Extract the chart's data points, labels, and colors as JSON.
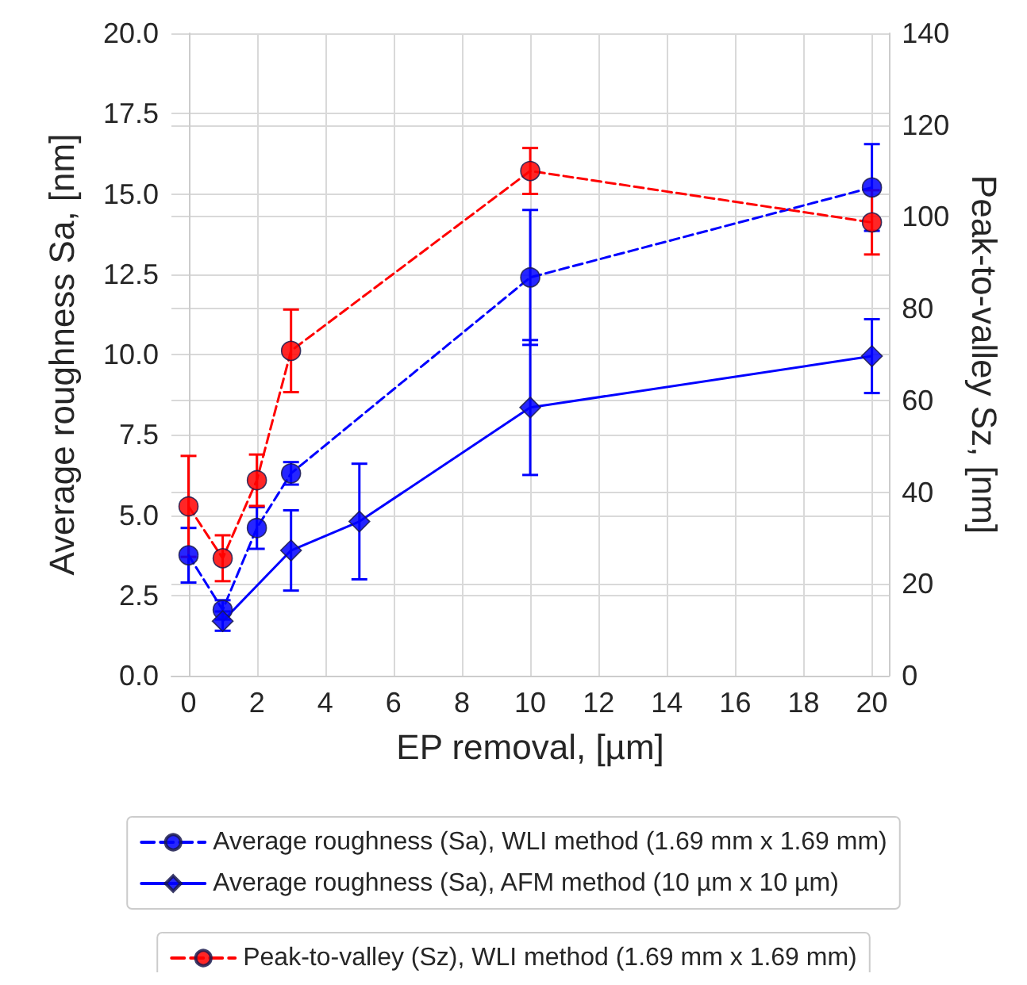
{
  "chart_data": {
    "type": "line",
    "xlabel": "EP removal, [µm]",
    "ylabel": "Average roughness Sa, [nm]",
    "y2label": "Peak-to-valley Sz, [nm]",
    "xlim": [
      -0.5,
      20.5
    ],
    "xticks": [
      0,
      2,
      4,
      6,
      8,
      10,
      12,
      14,
      16,
      18,
      20
    ],
    "ylim": [
      0,
      20
    ],
    "yticks": [
      {
        "value": 0,
        "label": "0.0"
      },
      {
        "value": 2.5,
        "label": "2.5"
      },
      {
        "value": 5,
        "label": "5.0"
      },
      {
        "value": 7.5,
        "label": "7.5"
      },
      {
        "value": 10,
        "label": "10.0"
      },
      {
        "value": 12.5,
        "label": "12.5"
      },
      {
        "value": 15,
        "label": "15.0"
      },
      {
        "value": 17.5,
        "label": "17.5"
      },
      {
        "value": 20,
        "label": "20.0"
      }
    ],
    "y2lim": [
      0,
      140
    ],
    "y2ticks": [
      0,
      20,
      40,
      60,
      80,
      100,
      120,
      140
    ],
    "grid": true,
    "legend": "bottom",
    "series": [
      {
        "name": "Average roughness (Sa), WLI method (1.69 mm x 1.69 mm)",
        "color": "#0000ff",
        "marker": "circle",
        "line_style": "dashed",
        "x": [
          0,
          1,
          2,
          3,
          10,
          20
        ],
        "values": [
          3.75,
          2.05,
          4.6,
          6.3,
          12.4,
          15.2
        ],
        "errors": [
          0.85,
          0.3,
          0.65,
          0.35,
          2.1,
          1.35
        ]
      },
      {
        "name": "Average roughness (Sa), AFM method (10 µm x 10 µm)",
        "color": "#0000ff",
        "marker": "diamond",
        "line_style": "solid",
        "x": [
          1,
          3,
          5,
          10,
          20
        ],
        "values": [
          1.7,
          3.9,
          4.8,
          8.35,
          9.95
        ],
        "errors": [
          0.3,
          1.25,
          1.8,
          2.1,
          1.15
        ]
      },
      {
        "name": "Peak-to-valley (Sz), WLI method (1.69 mm x 1.69 mm)",
        "color": "#ff0000",
        "marker": "circle",
        "line_style": "dashed",
        "axis": "y2",
        "x": [
          0,
          1,
          2,
          3,
          10,
          20
        ],
        "values": [
          36.9,
          25.6,
          42.6,
          70.8,
          110,
          98.8
        ],
        "errors": [
          11,
          5,
          5.6,
          9,
          5,
          7
        ]
      }
    ]
  }
}
